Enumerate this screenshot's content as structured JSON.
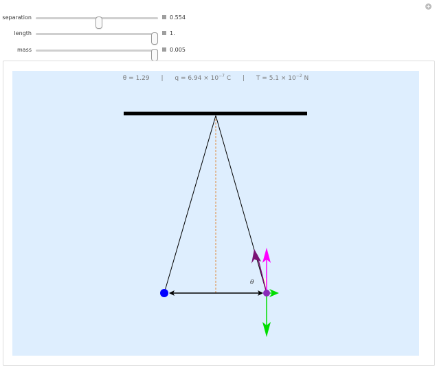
{
  "controls": [
    {
      "label": "separation",
      "value": "0.554",
      "fraction": 0.52
    },
    {
      "label": "length",
      "value": "1.",
      "fraction": 1.0
    },
    {
      "label": "mass",
      "value": "0.005",
      "fraction": 1.0
    }
  ],
  "readout": {
    "theta_label": "θ = 1.29",
    "q_prefix": "q = 6.94 × 10",
    "q_exp": "−7",
    "q_unit": " C",
    "t_prefix": "T = 5.1 × 10",
    "t_exp": "−2",
    "t_unit": " N",
    "separator": "|"
  },
  "diagram": {
    "angle_label": "θ",
    "colors": {
      "ceiling": "#000000",
      "string": "#000000",
      "vertical_guide": "#e08a3c",
      "left_ball": "#0000ff",
      "right_ball": "#8b2ab8",
      "tension_arrow": "#7a1275",
      "magenta_arrow": "#ff00ff",
      "green_arrow": "#00dd00",
      "electric_arrow": "#000000",
      "stage_bg": "#deeefe"
    }
  }
}
